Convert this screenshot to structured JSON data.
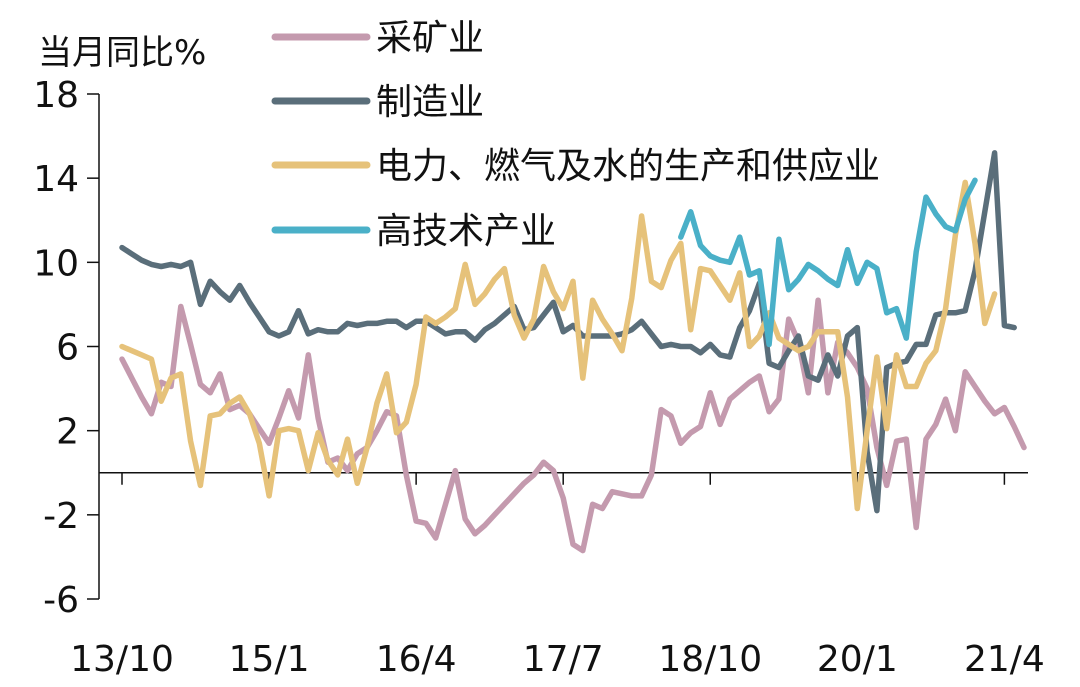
{
  "chart_data": {
    "type": "line",
    "ylabel": "当月同比%",
    "ylim": [
      -6,
      18
    ],
    "yticks": [
      "18",
      "14",
      "10",
      "6",
      "2",
      "-2",
      "-6"
    ],
    "ytick_values": [
      18,
      14,
      10,
      6,
      2,
      -2,
      -6
    ],
    "xticks": [
      "13/10",
      "15/1",
      "16/4",
      "17/7",
      "18/10",
      "20/1",
      "21/4"
    ],
    "x_start": "2013-10",
    "x_end": "2021-06",
    "legend_position": "top",
    "grid": false,
    "series": [
      {
        "name": "采矿业",
        "color": "#c49aae",
        "start": "2013-10",
        "values": [
          5.4,
          4.5,
          3.6,
          2.8,
          4.3,
          4.1,
          7.9,
          6.1,
          4.2,
          3.8,
          4.7,
          3.0,
          3.2,
          2.8,
          2.1,
          1.4,
          2.6,
          3.9,
          2.6,
          5.6,
          2.6,
          0.5,
          0.7,
          0.1,
          0.9,
          1.2,
          2.0,
          2.9,
          2.7,
          -0.1,
          -2.3,
          -2.4,
          -3.1,
          -1.5,
          0.1,
          -2.2,
          -2.9,
          -2.5,
          -2.0,
          -1.5,
          -1.0,
          -0.5,
          -0.1,
          0.5,
          0.1,
          -1.2,
          -3.4,
          -3.7,
          -1.5,
          -1.7,
          -0.9,
          -1.0,
          -1.1,
          -1.1,
          -0.1,
          3.0,
          2.7,
          1.4,
          1.9,
          2.2,
          3.8,
          2.3,
          3.5,
          3.9,
          4.3,
          4.6,
          2.9,
          3.5,
          7.3,
          6.2,
          3.8,
          8.2,
          3.8,
          6.2,
          5.7,
          5.0,
          4.0,
          1.2,
          -0.6,
          1.5,
          1.6,
          -2.6,
          1.6,
          2.3,
          3.5,
          2.0,
          4.8,
          4.1,
          3.4,
          2.8,
          3.1,
          2.2,
          1.2
        ]
      },
      {
        "name": "制造业",
        "color": "#5a6e7a",
        "start": "2013-10",
        "values": [
          10.7,
          10.4,
          10.1,
          9.9,
          9.8,
          9.9,
          9.8,
          10.0,
          8.0,
          9.1,
          8.6,
          8.2,
          8.9,
          8.1,
          7.4,
          6.7,
          6.5,
          6.7,
          7.7,
          6.6,
          6.8,
          6.7,
          6.7,
          7.1,
          7.0,
          7.1,
          7.1,
          7.2,
          7.2,
          6.9,
          7.2,
          7.2,
          6.9,
          6.6,
          6.7,
          6.7,
          6.3,
          6.8,
          7.1,
          7.5,
          7.9,
          6.8,
          6.9,
          7.5,
          8.1,
          6.7,
          7.0,
          6.5,
          6.5,
          6.5,
          6.5,
          6.6,
          6.8,
          7.2,
          6.6,
          6.0,
          6.1,
          6.0,
          6.0,
          5.7,
          6.1,
          5.6,
          5.5,
          6.9,
          7.7,
          9.0,
          5.2,
          5.0,
          5.8,
          6.5,
          4.6,
          4.4,
          5.6,
          4.6,
          6.5,
          6.9,
          1.0,
          -1.8,
          5.0,
          5.2,
          5.3,
          6.1,
          6.1,
          7.5,
          7.6,
          7.6,
          7.7,
          9.6,
          12.4,
          15.2,
          7.0,
          6.9
        ]
      },
      {
        "name": "电力、燃气及水的生产和供应业",
        "color": "#e6c27a",
        "start": "2013-10",
        "values": [
          6.0,
          5.8,
          5.6,
          5.4,
          3.4,
          4.5,
          4.7,
          1.5,
          -0.6,
          2.7,
          2.8,
          3.3,
          3.6,
          2.8,
          1.4,
          -1.1,
          2.0,
          2.1,
          2.0,
          0.1,
          1.9,
          0.6,
          -0.1,
          1.6,
          -0.5,
          1.2,
          3.3,
          4.7,
          1.9,
          2.4,
          4.2,
          7.4,
          7.1,
          7.4,
          7.8,
          9.9,
          8.0,
          8.5,
          9.2,
          9.7,
          7.5,
          6.4,
          7.3,
          9.8,
          8.6,
          7.8,
          9.1,
          4.5,
          8.2,
          7.3,
          6.6,
          5.8,
          8.3,
          12.2,
          9.1,
          8.8,
          10.1,
          10.9,
          6.8,
          9.7,
          9.6,
          8.9,
          8.2,
          9.5,
          6.0,
          6.5,
          7.6,
          6.4,
          6.1,
          5.8,
          6.0,
          6.7,
          6.7,
          6.7,
          3.6,
          -1.7,
          2.0,
          5.5,
          2.1,
          5.6,
          4.1,
          4.1,
          5.2,
          5.8,
          7.8,
          11.3,
          13.8,
          10.9,
          7.1,
          8.5
        ]
      },
      {
        "name": "高技术产业",
        "color": "#4ab0c8",
        "start": "2018-07",
        "values": [
          11.2,
          12.4,
          10.8,
          10.3,
          10.1,
          10.0,
          11.2,
          9.4,
          9.6,
          6.1,
          11.1,
          8.7,
          9.2,
          9.9,
          9.6,
          9.2,
          8.9,
          10.6,
          9.0,
          10.0,
          9.7,
          7.6,
          7.8,
          6.4,
          10.5,
          13.1,
          12.3,
          11.7,
          11.5,
          13.0,
          13.9
        ]
      }
    ]
  }
}
